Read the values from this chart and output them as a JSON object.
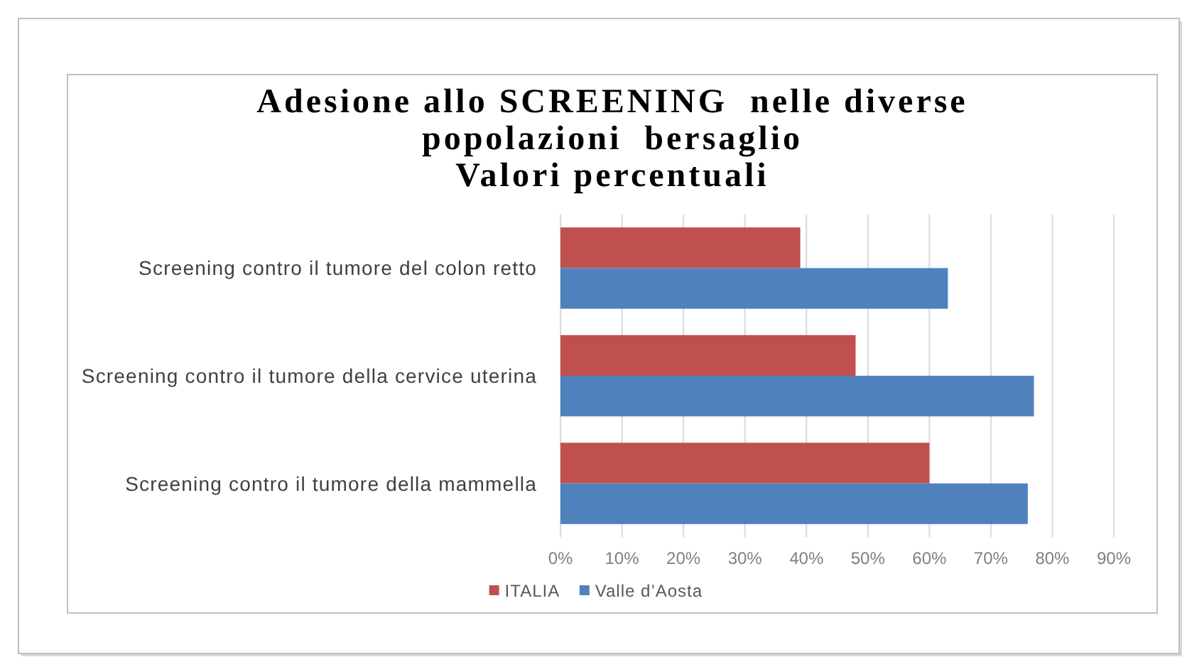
{
  "chart_data": {
    "type": "bar",
    "orientation": "horizontal",
    "title": "Adesione allo SCREENING  nelle diverse\npopolazioni  bersaglio\nValori percentuali",
    "categories": [
      "Screening contro il tumore del colon retto",
      "Screening contro il tumore della cervice uterina",
      "Screening contro il tumore della mammella"
    ],
    "series": [
      {
        "name": "ITALIA",
        "color": "#c0504d",
        "values": [
          39,
          48,
          60
        ]
      },
      {
        "name": "Valle d’Aosta",
        "color": "#4f81bd",
        "values": [
          63,
          77,
          76
        ]
      }
    ],
    "xlim": [
      0,
      90
    ],
    "xticks": [
      {
        "value": 0,
        "label": "0%"
      },
      {
        "value": 10,
        "label": "10%"
      },
      {
        "value": 20,
        "label": "20%"
      },
      {
        "value": 30,
        "label": "30%"
      },
      {
        "value": 40,
        "label": "40%"
      },
      {
        "value": 50,
        "label": "50%"
      },
      {
        "value": 60,
        "label": "60%"
      },
      {
        "value": 70,
        "label": "70%"
      },
      {
        "value": 80,
        "label": "80%"
      },
      {
        "value": 90,
        "label": "90%"
      }
    ],
    "grid": "x",
    "legend": "bottom"
  }
}
